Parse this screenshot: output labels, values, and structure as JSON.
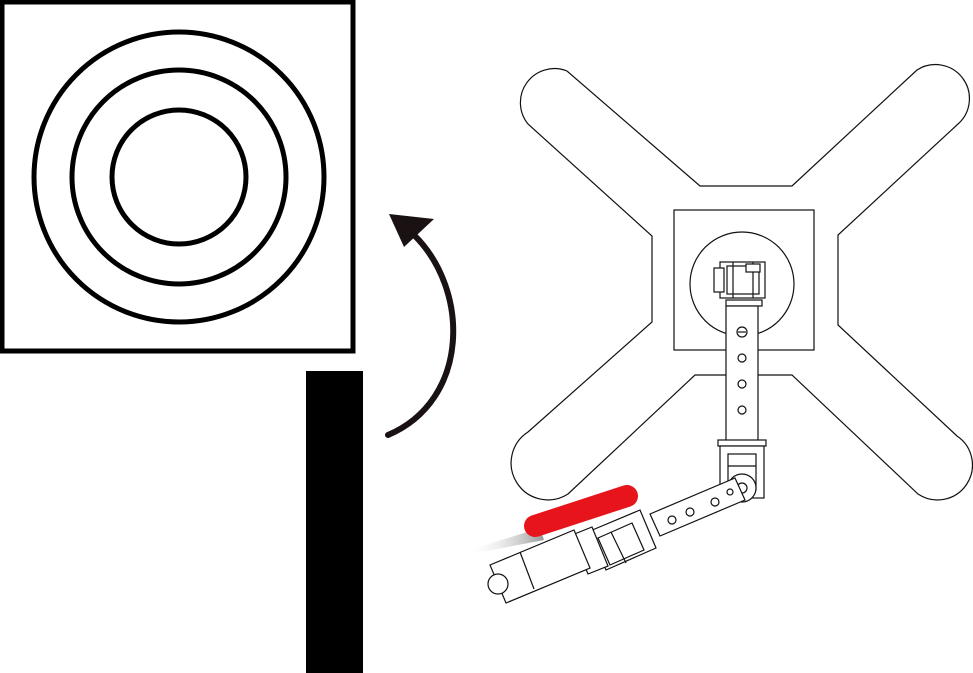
{
  "diagram": {
    "target_icon": "concentric-rings-target-icon",
    "wall_icon": "black-wall-bar",
    "rotation_arrow_icon": "curved-arrow-counterclockwise-icon",
    "robot_icon": "x-frame-robot-with-arm-icon",
    "highlight_icon": "red-highlight-pad",
    "motion_trail_icon": "motion-trail",
    "colors": {
      "stroke": "#000000",
      "arrow": "#1a1212",
      "highlight": "#e8141c",
      "trail": "#9a9a9a",
      "background": "#ffffff"
    }
  }
}
